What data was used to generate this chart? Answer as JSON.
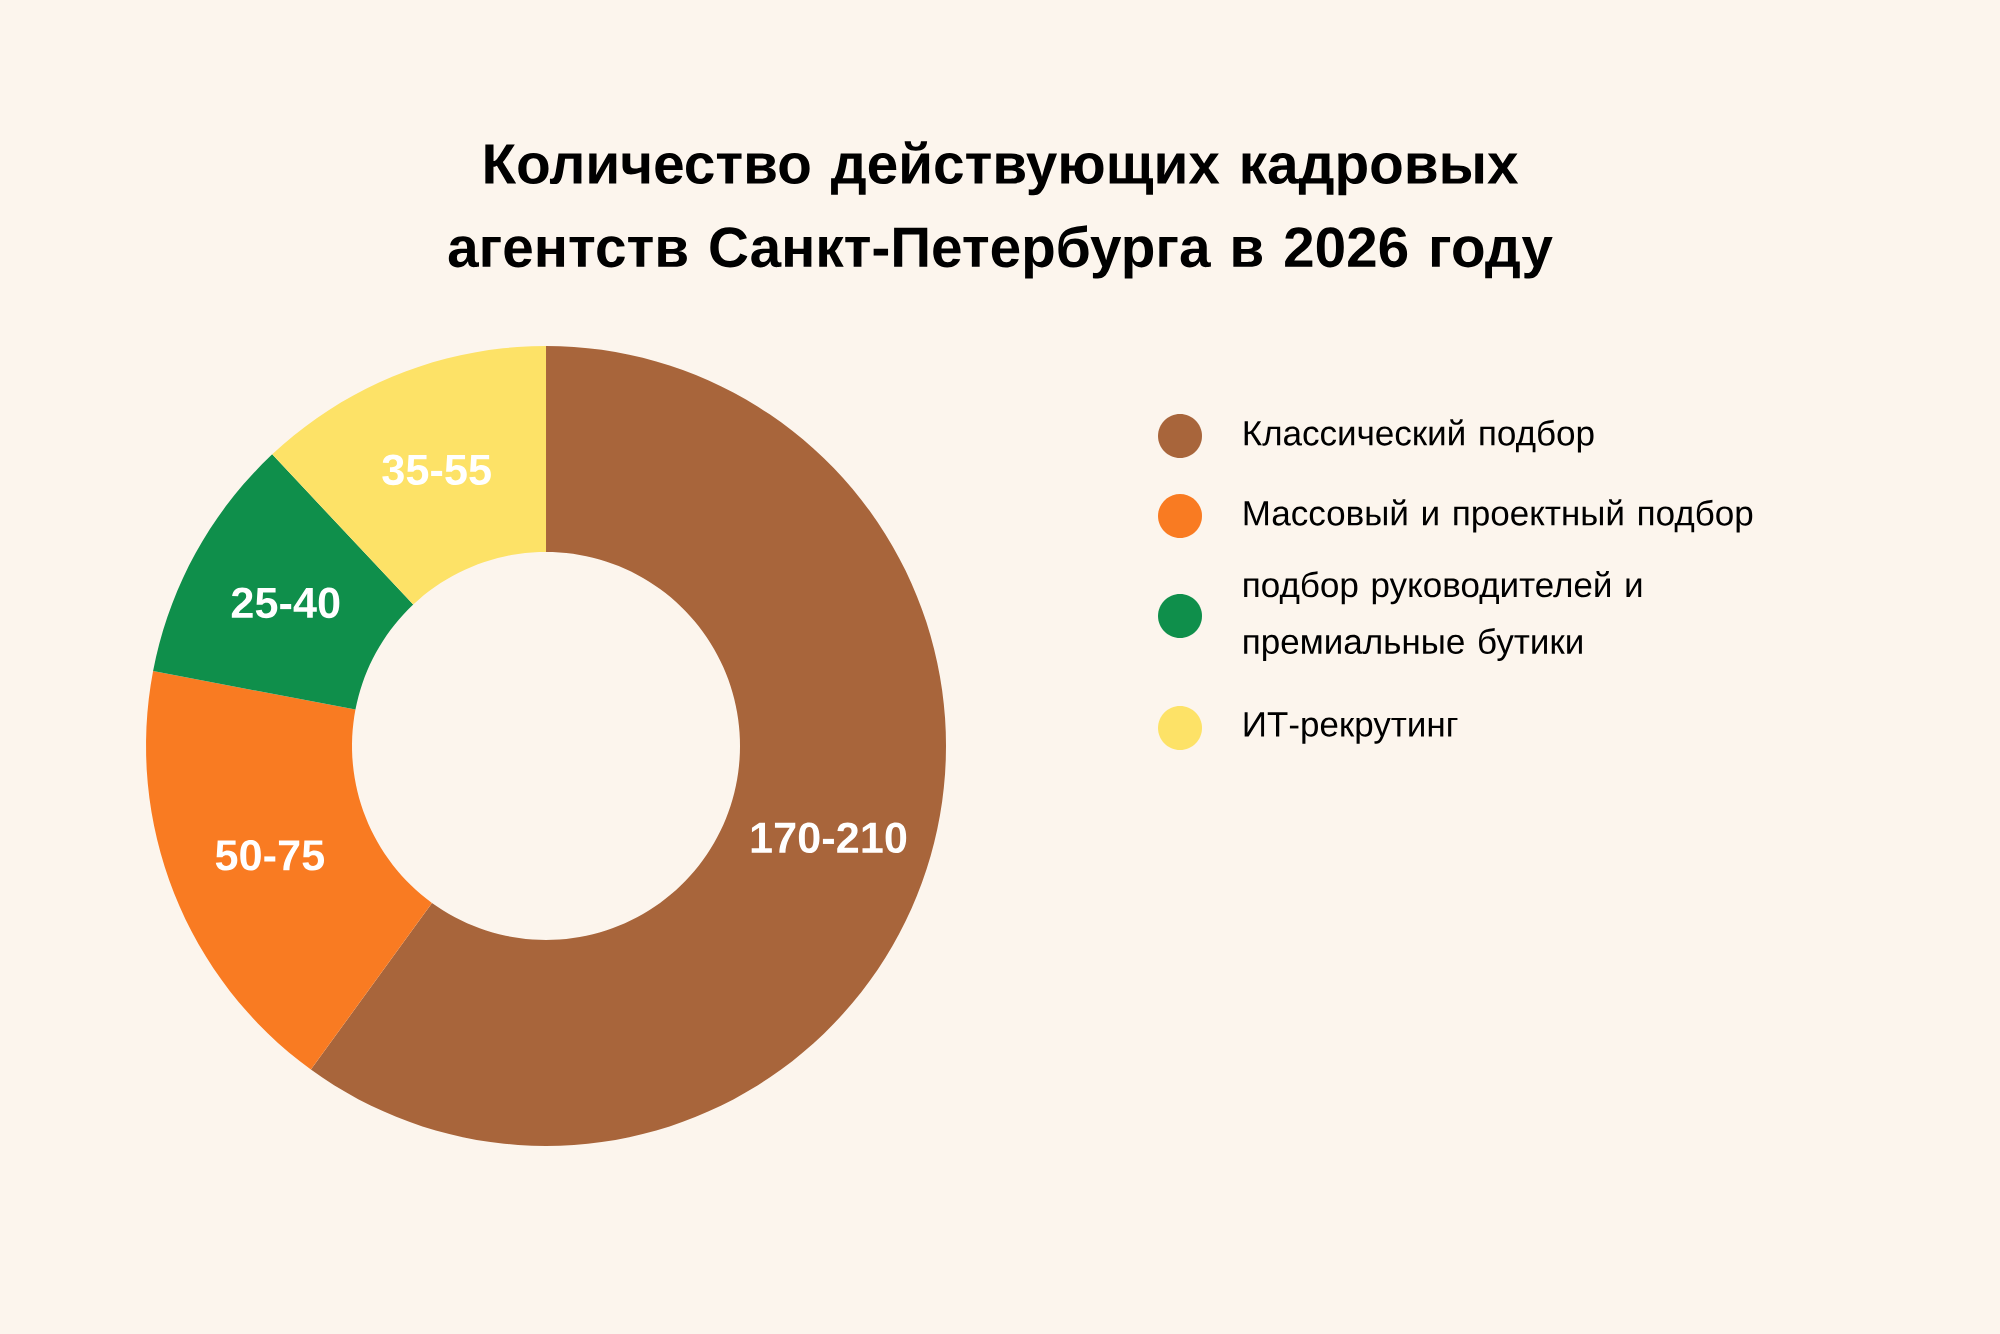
{
  "chart_data": {
    "type": "donut",
    "title": "Количество действующих кадровых агентств Санкт-Петербурга в 2026 году",
    "categories": [
      "Классический подбор",
      "Массовый и проектный подбор",
      "подбор руководителей и премиальные бутики",
      "ИТ-рекрутинг"
    ],
    "values": [
      60,
      18,
      10,
      12
    ],
    "colors": [
      "#a8653b",
      "#f97b22",
      "#0f8f4b",
      "#fde267"
    ],
    "value_labels": [
      "170-210",
      "50-75",
      "25-40",
      "35-55"
    ],
    "legend": "right"
  }
}
